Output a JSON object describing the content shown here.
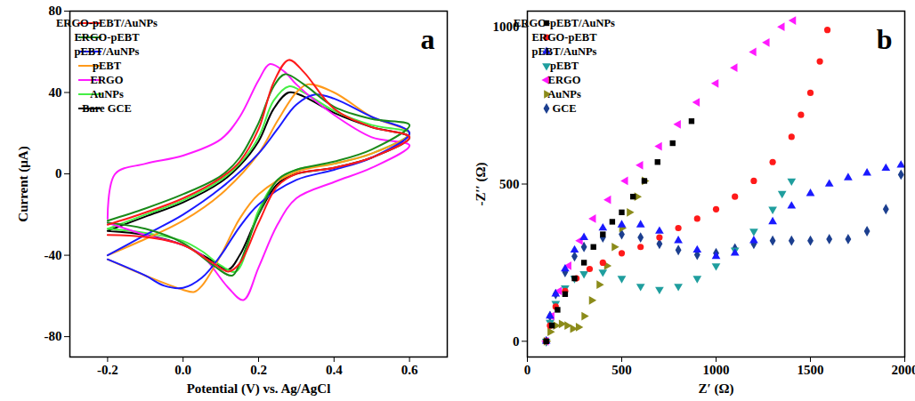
{
  "chart_data": [
    {
      "type": "line",
      "x_label": "Potential (V) vs. Ag/AgCl",
      "y_label": "Current (μA)",
      "annotations": [
        "a"
      ],
      "xlim": [
        -0.3,
        0.7
      ],
      "xticks": [
        -0.2,
        {
          "value": 0,
          "label": "0.0"
        },
        0.2,
        0.4,
        0.6
      ],
      "ylim": [
        -90,
        80
      ],
      "yticks": [
        -80,
        -40,
        0,
        40,
        80
      ],
      "grid": false,
      "legend": "upper left",
      "series": [
        {
          "name": "ERGO-pEBT/AuNPs",
          "color": "#ff1a1a",
          "line_style": "solid",
          "x": [
            -0.2,
            -0.1,
            0,
            0.1,
            0.15,
            0.2,
            0.24,
            0.28,
            0.32,
            0.4,
            0.5,
            0.6,
            0.5,
            0.4,
            0.3,
            0.25,
            0.2,
            0.15,
            0.12,
            0.08,
            0,
            -0.1,
            -0.2
          ],
          "values": [
            -25,
            -19,
            -12,
            -2,
            6,
            22,
            45,
            56,
            50,
            32,
            23,
            18,
            8,
            3,
            0,
            -6,
            -24,
            -44,
            -48,
            -44,
            -35,
            -31,
            -30
          ]
        },
        {
          "name": "ERGO-pEBT",
          "color": "#1a8a1a",
          "line_style": "solid",
          "x": [
            -0.2,
            -0.1,
            0,
            0.1,
            0.15,
            0.2,
            0.24,
            0.27,
            0.32,
            0.4,
            0.5,
            0.6,
            0.5,
            0.4,
            0.3,
            0.25,
            0.2,
            0.15,
            0.13,
            0.08,
            0,
            -0.1,
            -0.2
          ],
          "values": [
            -23,
            -17,
            -10,
            -1,
            8,
            25,
            43,
            49,
            44,
            33,
            27,
            24,
            12,
            6,
            2,
            -3,
            -20,
            -44,
            -50,
            -45,
            -34,
            -27,
            -24
          ]
        },
        {
          "name": "pEBT/AuNPs",
          "color": "#1a1aff",
          "line_style": "solid",
          "x": [
            -0.2,
            -0.1,
            0,
            0.1,
            0.2,
            0.25,
            0.3,
            0.35,
            0.4,
            0.5,
            0.6,
            0.5,
            0.4,
            0.3,
            0.2,
            0.15,
            0.1,
            0.05,
            0,
            -0.05,
            -0.1,
            -0.2
          ],
          "values": [
            -40,
            -30,
            -20,
            -7,
            10,
            22,
            34,
            39,
            37,
            28,
            20,
            8,
            2,
            -3,
            -15,
            -26,
            -40,
            -51,
            -56,
            -55,
            -50,
            -42
          ]
        },
        {
          "name": "pEBT",
          "color": "#ff9a1a",
          "line_style": "solid",
          "x": [
            -0.2,
            -0.1,
            0,
            0.1,
            0.2,
            0.25,
            0.3,
            0.33,
            0.4,
            0.5,
            0.6,
            0.5,
            0.4,
            0.3,
            0.2,
            0.15,
            0.1,
            0.05,
            0.03,
            0,
            -0.1,
            -0.2
          ],
          "values": [
            -40,
            -32,
            -23,
            -10,
            10,
            26,
            40,
            44,
            40,
            28,
            20,
            10,
            5,
            1,
            -10,
            -22,
            -40,
            -55,
            -58,
            -57,
            -50,
            -42
          ]
        },
        {
          "name": "ERGO",
          "color": "#ff1aff",
          "line_style": "solid",
          "x": [
            -0.2,
            -0.18,
            -0.1,
            0,
            0.1,
            0.15,
            0.2,
            0.23,
            0.27,
            0.3,
            0.4,
            0.5,
            0.6,
            0.5,
            0.4,
            0.3,
            0.25,
            0.2,
            0.16,
            0.12,
            0.05,
            0,
            -0.1,
            -0.2
          ],
          "values": [
            -22,
            0,
            5,
            9,
            17,
            28,
            46,
            54,
            50,
            44,
            29,
            18,
            14,
            3,
            -4,
            -12,
            -25,
            -46,
            -62,
            -56,
            -40,
            -35,
            -30,
            -24
          ]
        },
        {
          "name": "AuNPs",
          "color": "#44ee44",
          "line_style": "solid",
          "x": [
            -0.2,
            -0.1,
            0,
            0.1,
            0.15,
            0.2,
            0.24,
            0.28,
            0.32,
            0.4,
            0.5,
            0.6,
            0.5,
            0.4,
            0.3,
            0.25,
            0.2,
            0.14,
            0.1,
            0.05,
            0,
            -0.1,
            -0.2
          ],
          "values": [
            -27,
            -20,
            -13,
            -3,
            5,
            18,
            36,
            43,
            40,
            31,
            24,
            20,
            10,
            5,
            2,
            -3,
            -18,
            -48,
            -45,
            -38,
            -33,
            -29,
            -27
          ]
        },
        {
          "name": "Bare GCE",
          "color": "#000000",
          "line_style": "solid",
          "x": [
            -0.2,
            -0.1,
            0,
            0.1,
            0.15,
            0.2,
            0.24,
            0.28,
            0.32,
            0.4,
            0.5,
            0.6,
            0.5,
            0.4,
            0.3,
            0.25,
            0.2,
            0.15,
            0.12,
            0.08,
            0,
            -0.1,
            -0.2
          ],
          "values": [
            -28,
            -21,
            -14,
            -4,
            4,
            16,
            32,
            40,
            38,
            30,
            23,
            18,
            8,
            3,
            0,
            -5,
            -20,
            -40,
            -47,
            -43,
            -35,
            -30,
            -28
          ]
        }
      ]
    },
    {
      "type": "scatter",
      "x_label": "Z′ (Ω)",
      "y_label": "-Z′′ (Ω)",
      "annotations": [
        "b"
      ],
      "xlim": [
        0,
        2000
      ],
      "xticks": [
        0,
        500,
        1000,
        1500,
        2000
      ],
      "ylim": [
        -50,
        1050
      ],
      "yticks": [
        0,
        500,
        1000
      ],
      "grid": false,
      "legend": "upper left",
      "series": [
        {
          "name": "ERGO-pEBT/AuNPs",
          "color": "#000000",
          "marker": "square",
          "x": [
            100,
            130,
            160,
            200,
            250,
            300,
            350,
            400,
            450,
            500,
            560,
            620,
            690,
            770,
            870
          ],
          "values": [
            0,
            50,
            100,
            150,
            200,
            250,
            300,
            340,
            380,
            410,
            460,
            510,
            570,
            630,
            700
          ]
        },
        {
          "name": "ERGO-pEBT",
          "color": "#ff1a1a",
          "marker": "circle",
          "x": [
            100,
            120,
            150,
            200,
            260,
            330,
            400,
            500,
            600,
            700,
            800,
            900,
            1000,
            1100,
            1200,
            1300,
            1400,
            1450,
            1500,
            1550,
            1590
          ],
          "values": [
            0,
            50,
            110,
            160,
            200,
            230,
            250,
            280,
            300,
            330,
            360,
            390,
            420,
            460,
            510,
            570,
            650,
            720,
            790,
            890,
            990
          ]
        },
        {
          "name": "pEBT/AuNPs",
          "color": "#1a1aff",
          "marker": "triangle-up",
          "x": [
            100,
            120,
            150,
            200,
            250,
            300,
            400,
            500,
            600,
            700,
            800,
            900,
            1000,
            1100,
            1200,
            1300,
            1400,
            1500,
            1600,
            1700,
            1800,
            1900,
            1980
          ],
          "values": [
            0,
            80,
            150,
            230,
            290,
            330,
            360,
            370,
            370,
            350,
            320,
            290,
            270,
            280,
            320,
            380,
            430,
            470,
            500,
            520,
            535,
            550,
            560
          ]
        },
        {
          "name": "pEBT",
          "color": "#1f9e9e",
          "marker": "triangle-down",
          "x": [
            100,
            120,
            150,
            200,
            250,
            300,
            400,
            500,
            600,
            700,
            800,
            900,
            1000,
            1100,
            1200,
            1300,
            1350,
            1400
          ],
          "values": [
            0,
            60,
            120,
            170,
            200,
            215,
            220,
            200,
            175,
            165,
            175,
            200,
            240,
            290,
            350,
            420,
            470,
            510
          ]
        },
        {
          "name": "ERGO",
          "color": "#ff1aff",
          "marker": "triangle-left",
          "x": [
            100,
            130,
            170,
            220,
            280,
            350,
            430,
            520,
            600,
            700,
            800,
            900,
            1000,
            1100,
            1200,
            1270,
            1350,
            1410
          ],
          "values": [
            0,
            80,
            160,
            240,
            320,
            390,
            450,
            510,
            560,
            620,
            690,
            760,
            820,
            870,
            920,
            950,
            1000,
            1020
          ]
        },
        {
          "name": "AuNPs",
          "color": "#8b8b1a",
          "marker": "triangle-right",
          "x": [
            100,
            120,
            150,
            180,
            210,
            240,
            270,
            300,
            340,
            380,
            420,
            460,
            500,
            540,
            580,
            620
          ],
          "values": [
            0,
            30,
            50,
            55,
            50,
            40,
            45,
            80,
            130,
            180,
            240,
            300,
            360,
            410,
            460,
            510
          ]
        },
        {
          "name": "GCE",
          "color": "#1c3f8f",
          "marker": "diamond",
          "x": [
            100,
            120,
            150,
            200,
            250,
            300,
            400,
            500,
            600,
            700,
            800,
            900,
            1000,
            1100,
            1200,
            1300,
            1400,
            1500,
            1600,
            1700,
            1800,
            1900,
            1980
          ],
          "values": [
            0,
            80,
            150,
            220,
            270,
            300,
            330,
            340,
            330,
            310,
            290,
            275,
            280,
            295,
            310,
            320,
            320,
            320,
            325,
            325,
            350,
            420,
            530
          ]
        }
      ]
    }
  ]
}
